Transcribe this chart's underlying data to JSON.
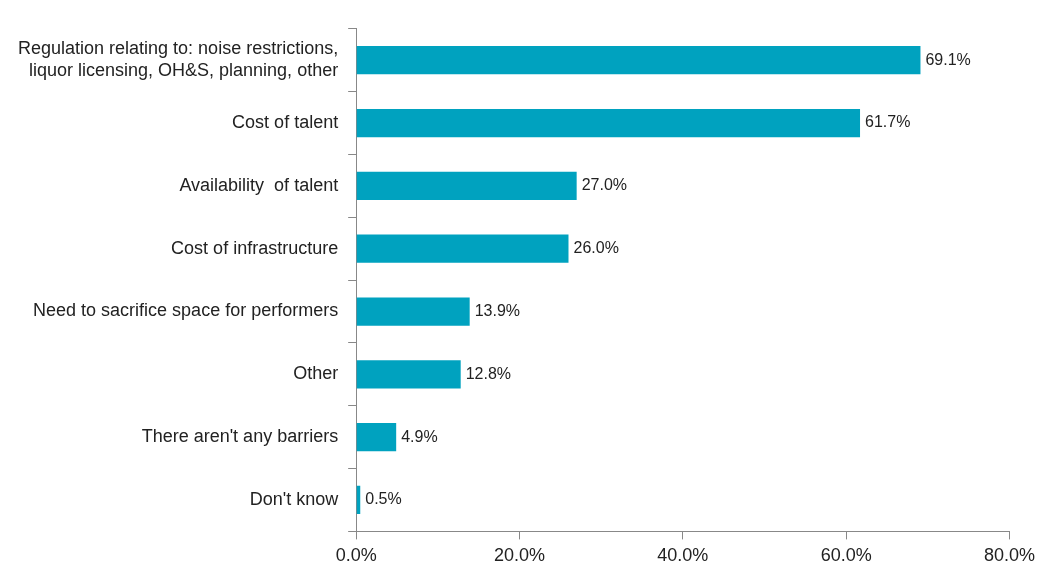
{
  "chart_data": {
    "type": "bar",
    "orientation": "horizontal",
    "categories": [
      "Regulation relating to: noise restrictions,\nliquor licensing, OH&S, planning, other",
      "Cost of talent",
      "Availability  of talent",
      "Cost of infrastructure",
      "Need to sacrifice space for performers",
      "Other",
      "There aren't any barriers",
      "Don't know"
    ],
    "values": [
      69.1,
      61.7,
      27.0,
      26.0,
      13.9,
      12.8,
      4.9,
      0.5
    ],
    "value_labels": [
      "69.1%",
      "61.7%",
      "27.0%",
      "26.0%",
      "13.9%",
      "12.8%",
      "4.9%",
      "0.5%"
    ],
    "color": "#00a2bf",
    "xlim": [
      0,
      80
    ],
    "xticks": [
      {
        "value": 0,
        "label": "0.0%"
      },
      {
        "value": 20,
        "label": "20.0%"
      },
      {
        "value": 40,
        "label": "40.0%"
      },
      {
        "value": 60,
        "label": "60.0%"
      },
      {
        "value": 80,
        "label": "80.0%"
      }
    ],
    "grid": false,
    "legend": false
  }
}
